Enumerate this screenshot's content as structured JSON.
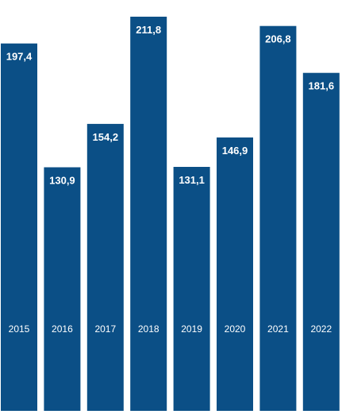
{
  "chart_data": {
    "type": "bar",
    "categories": [
      "2015",
      "2016",
      "2017",
      "2018",
      "2019",
      "2020",
      "2021",
      "2022"
    ],
    "values": [
      197.4,
      130.9,
      154.2,
      211.8,
      131.1,
      146.9,
      206.8,
      181.6
    ],
    "value_labels": [
      "197,4",
      "130,9",
      "154,2",
      "211,8",
      "131,1",
      "146,9",
      "206,8",
      "181,6"
    ],
    "bar_color": "#0b4f86",
    "label_color": "#ffffff",
    "title": "",
    "xlabel": "",
    "ylabel": "",
    "grid": false,
    "legend": false
  }
}
